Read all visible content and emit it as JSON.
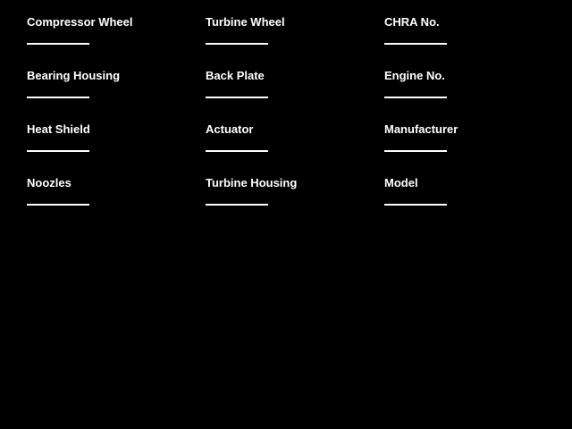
{
  "app": {
    "background_color": "#000000",
    "text_color": "#ffffff",
    "underline_color": "#ffffff"
  },
  "form": {
    "columns": [
      {
        "fields": [
          {
            "label": "Compressor Wheel",
            "value": ""
          },
          {
            "label": "Bearing Housing",
            "value": ""
          },
          {
            "label": "Heat Shield",
            "value": ""
          },
          {
            "label": "Noozles",
            "value": ""
          }
        ]
      },
      {
        "fields": [
          {
            "label": "Turbine Wheel",
            "value": ""
          },
          {
            "label": "Back Plate",
            "value": ""
          },
          {
            "label": "Actuator",
            "value": ""
          },
          {
            "label": "Turbine Housing",
            "value": ""
          }
        ]
      },
      {
        "fields": [
          {
            "label": "CHRA No.",
            "value": ""
          },
          {
            "label": "Engine No.",
            "value": ""
          },
          {
            "label": "Manufacturer",
            "value": ""
          },
          {
            "label": "Model",
            "value": ""
          }
        ]
      }
    ]
  }
}
